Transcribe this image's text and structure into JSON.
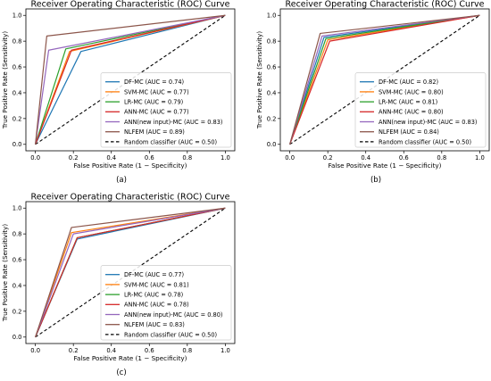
{
  "chart_data": [
    {
      "type": "line",
      "panel_label": "(a)",
      "title": "Receiver Operating Characteristic (ROC) Curve",
      "xlabel": "False Positive Rate (1 − Specificity)",
      "ylabel": "True Positive Rate (Sensitivity)",
      "xlim": [
        -0.05,
        1.05
      ],
      "ylim": [
        -0.05,
        1.05
      ],
      "xticks": [
        "0.0",
        "0.2",
        "0.4",
        "0.6",
        "0.8",
        "1.0"
      ],
      "yticks": [
        "0.0",
        "0.2",
        "0.4",
        "0.6",
        "0.8",
        "1.0"
      ],
      "grid": false,
      "legend_position": "lower-right",
      "series": [
        {
          "name": "DF-MC (AUC = 0.74)",
          "color": "#1f77b4",
          "x": [
            0,
            0.24,
            1
          ],
          "y": [
            0,
            0.72,
            1
          ]
        },
        {
          "name": "SVM-MC (AUC = 0.77)",
          "color": "#ff7f0e",
          "x": [
            0,
            0.18,
            1
          ],
          "y": [
            0,
            0.72,
            1
          ]
        },
        {
          "name": "LR-MC (AUC = 0.79)",
          "color": "#2ca02c",
          "x": [
            0,
            0.16,
            1
          ],
          "y": [
            0,
            0.74,
            1
          ]
        },
        {
          "name": "ANN-MC (AUC = 0.77)",
          "color": "#d62728",
          "x": [
            0,
            0.19,
            1
          ],
          "y": [
            0,
            0.73,
            1
          ]
        },
        {
          "name": "ANN(new input)-MC (AUC = 0.83)",
          "color": "#9467bd",
          "x": [
            0,
            0.07,
            1
          ],
          "y": [
            0,
            0.73,
            1
          ]
        },
        {
          "name": "NLFEM (AUC = 0.89)",
          "color": "#8c564b",
          "x": [
            0,
            0.06,
            1
          ],
          "y": [
            0,
            0.84,
            1
          ]
        },
        {
          "name": "Random classifier (AUC = 0.50)",
          "color": "#000000",
          "dashed": true,
          "x": [
            0,
            1
          ],
          "y": [
            0,
            1
          ]
        }
      ]
    },
    {
      "type": "line",
      "panel_label": "(b)",
      "title": "Receiver Operating Characteristic (ROC) Curve",
      "xlabel": "False Positive Rate (1 − Specificity)",
      "ylabel": "True Positive Rate (Sensitivity)",
      "xlim": [
        -0.05,
        1.05
      ],
      "ylim": [
        -0.05,
        1.05
      ],
      "xticks": [
        "0.0",
        "0.2",
        "0.4",
        "0.6",
        "0.8",
        "1.0"
      ],
      "yticks": [
        "0.0",
        "0.2",
        "0.4",
        "0.6",
        "0.8",
        "1.0"
      ],
      "grid": false,
      "legend_position": "lower-right",
      "series": [
        {
          "name": "DF-MC (AUC = 0.82)",
          "color": "#1f77b4",
          "x": [
            0,
            0.18,
            1
          ],
          "y": [
            0,
            0.83,
            1
          ]
        },
        {
          "name": "SVM-MC (AUC = 0.80)",
          "color": "#ff7f0e",
          "x": [
            0,
            0.2,
            1
          ],
          "y": [
            0,
            0.81,
            1
          ]
        },
        {
          "name": "LR-MC (AUC = 0.81)",
          "color": "#2ca02c",
          "x": [
            0,
            0.19,
            1
          ],
          "y": [
            0,
            0.82,
            1
          ]
        },
        {
          "name": "ANN-MC (AUC = 0.80)",
          "color": "#d62728",
          "x": [
            0,
            0.21,
            1
          ],
          "y": [
            0,
            0.8,
            1
          ]
        },
        {
          "name": "ANN(new input)-MC (AUC = 0.83)",
          "color": "#9467bd",
          "x": [
            0,
            0.17,
            1
          ],
          "y": [
            0,
            0.84,
            1
          ]
        },
        {
          "name": "NLFEM (AUC = 0.84)",
          "color": "#8c564b",
          "x": [
            0,
            0.16,
            1
          ],
          "y": [
            0,
            0.86,
            1
          ]
        },
        {
          "name": "Random classifier (AUC = 0.50)",
          "color": "#000000",
          "dashed": true,
          "x": [
            0,
            1
          ],
          "y": [
            0,
            1
          ]
        }
      ]
    },
    {
      "type": "line",
      "panel_label": "(c)",
      "title": "Receiver Operating Characteristic (ROC) Curve",
      "xlabel": "False Positive Rate (1 − Specificity)",
      "ylabel": "True Positive Rate (Sensitivity)",
      "xlim": [
        -0.05,
        1.05
      ],
      "ylim": [
        -0.05,
        1.05
      ],
      "xticks": [
        "0.0",
        "0.2",
        "0.4",
        "0.6",
        "0.8",
        "1.0"
      ],
      "yticks": [
        "0.0",
        "0.2",
        "0.4",
        "0.6",
        "0.8",
        "1.0"
      ],
      "grid": false,
      "legend_position": "lower-right",
      "series": [
        {
          "name": "DF-MC (AUC = 0.77)",
          "color": "#1f77b4",
          "x": [
            0,
            0.22,
            1
          ],
          "y": [
            0,
            0.76,
            1
          ]
        },
        {
          "name": "SVM-MC (AUC = 0.81)",
          "color": "#ff7f0e",
          "x": [
            0,
            0.19,
            1
          ],
          "y": [
            0,
            0.81,
            1
          ]
        },
        {
          "name": "LR-MC (AUC = 0.78)",
          "color": "#2ca02c",
          "x": [
            0,
            0.22,
            1
          ],
          "y": [
            0,
            0.77,
            1
          ]
        },
        {
          "name": "ANN-MC (AUC = 0.78)",
          "color": "#d62728",
          "x": [
            0,
            0.22,
            1
          ],
          "y": [
            0,
            0.77,
            1
          ]
        },
        {
          "name": "ANN(new input)-MC (AUC = 0.80)",
          "color": "#9467bd",
          "x": [
            0,
            0.2,
            1
          ],
          "y": [
            0,
            0.8,
            1
          ]
        },
        {
          "name": "NLFEM (AUC = 0.83)",
          "color": "#8c564b",
          "x": [
            0,
            0.19,
            1
          ],
          "y": [
            0,
            0.85,
            1
          ]
        },
        {
          "name": "Random classifier (AUC = 0.50)",
          "color": "#000000",
          "dashed": true,
          "x": [
            0,
            1
          ],
          "y": [
            0,
            1
          ]
        }
      ]
    }
  ]
}
